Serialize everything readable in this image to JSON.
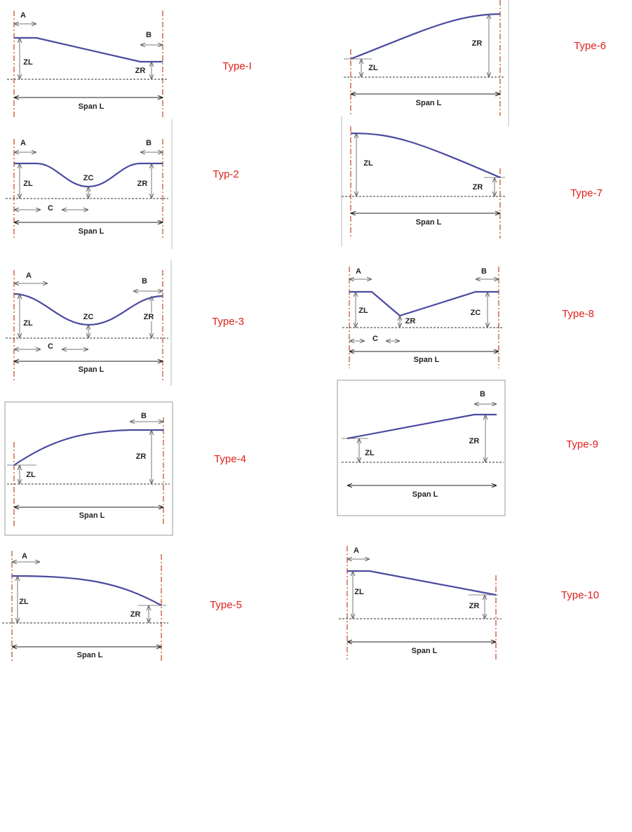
{
  "diagrams": [
    {
      "name": "Type-I",
      "labels": [
        "A",
        "B",
        "ZL",
        "ZR",
        "Span L"
      ]
    },
    {
      "name": "Typ-2",
      "labels": [
        "A",
        "B",
        "ZL",
        "ZC",
        "ZR",
        "C",
        "Span L"
      ]
    },
    {
      "name": "Type-3",
      "labels": [
        "A",
        "B",
        "ZL",
        "ZC",
        "ZR",
        "C",
        "Span L"
      ]
    },
    {
      "name": "Type-4",
      "labels": [
        "B",
        "ZR",
        "ZL",
        "Span L"
      ]
    },
    {
      "name": "Type-5",
      "labels": [
        "A",
        "ZL",
        "ZR",
        "Span L"
      ]
    },
    {
      "name": "Type-6",
      "labels": [
        "ZR",
        "ZL",
        "Span L"
      ]
    },
    {
      "name": "Type-7",
      "labels": [
        "ZL",
        "ZR",
        "Span L"
      ]
    },
    {
      "name": "Type-8",
      "labels": [
        "A",
        "B",
        "ZL",
        "ZR",
        "ZC",
        "C",
        "Span L"
      ]
    },
    {
      "name": "Type-9",
      "labels": [
        "B",
        "ZR",
        "ZL",
        "Span L"
      ]
    },
    {
      "name": "Type-10",
      "labels": [
        "A",
        "ZL",
        "ZR",
        "Span L"
      ]
    }
  ]
}
